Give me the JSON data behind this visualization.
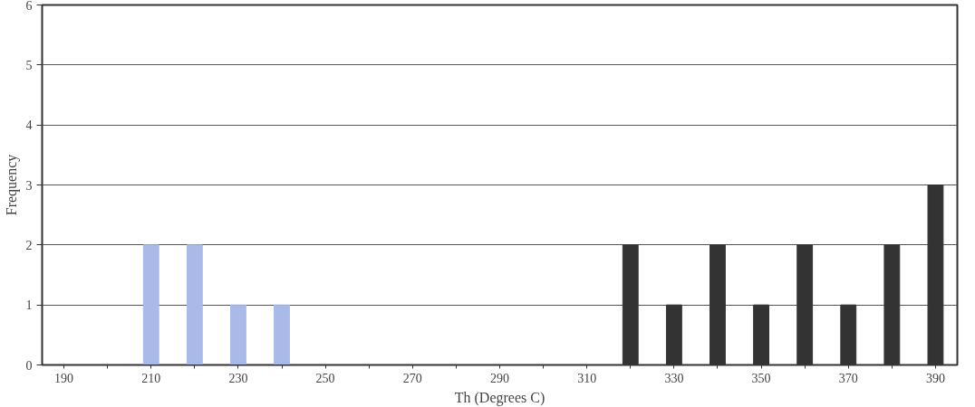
{
  "chart_data": {
    "type": "bar",
    "xlabel": "Th (Degrees C)",
    "ylabel": "Frequency",
    "categories": [
      "190",
      null,
      "210",
      null,
      "230",
      null,
      "250",
      null,
      "270",
      null,
      "290",
      null,
      "310",
      null,
      "330",
      null,
      "350",
      null,
      "370",
      null,
      "390"
    ],
    "values": [
      0,
      0,
      2,
      2,
      1,
      1,
      0,
      0,
      0,
      0,
      0,
      0,
      0,
      2,
      1,
      2,
      1,
      2,
      1,
      2,
      3
    ],
    "colors": [
      "#a9b9e8",
      "#a9b9e8",
      "#a9b9e8",
      "#a9b9e8",
      "#a9b9e8",
      "#a9b9e8",
      "#a9b9e8",
      "#a9b9e8",
      "#a9b9e8",
      "#a9b9e8",
      "#a9b9e8",
      "#a9b9e8",
      "#a9b9e8",
      "#333333",
      "#333333",
      "#333333",
      "#333333",
      "#333333",
      "#333333",
      "#333333",
      "#333333"
    ],
    "ylim": [
      0,
      6
    ],
    "yticks": [
      0,
      1,
      2,
      3,
      4,
      5,
      6
    ],
    "grid": "y"
  }
}
